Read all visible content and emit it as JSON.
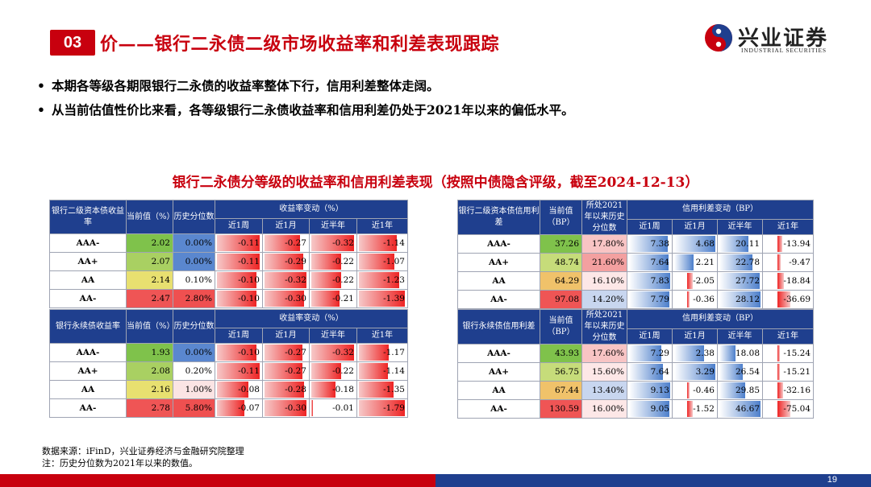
{
  "header": {
    "section_number": "03",
    "title": "价——银行二永债二级市场收益率和利差表现跟踪",
    "logo_cn": "兴业证券",
    "logo_en": "INDUSTRIAL SECURITIES"
  },
  "bullets": [
    "本期各等级各期限银行二永债的收益率整体下行，信用利差整体走阔。",
    "从当前估值性价比来看，各等级银行二永债收益率和信用利差仍处于2021年以来的偏低水平。"
  ],
  "table_title": "银行二永债分等级的收益率和信用利差表现（按照中债隐含评级，截至2024-12-13）",
  "colors": {
    "accent_red": "#c8000e",
    "header_blue": "#1f3f8e"
  },
  "yield_tables": [
    {
      "headers": {
        "c1": "银行二级资本债收益率",
        "c2": "当前值（%）",
        "c3": "历史分位数",
        "group": "收益率变动（%）",
        "sub": [
          "近1周",
          "近1月",
          "近半年",
          "近1年"
        ]
      },
      "rows": [
        {
          "grade": "AAA-",
          "current": "2.02",
          "pct": "0.00%",
          "w1": "-0.11",
          "m1": "-0.27",
          "h1": "-0.32",
          "y1": "-1.14"
        },
        {
          "grade": "AA+",
          "current": "2.07",
          "pct": "0.00%",
          "w1": "-0.11",
          "m1": "-0.29",
          "h1": "-0.22",
          "y1": "-1.07"
        },
        {
          "grade": "AA",
          "current": "2.14",
          "pct": "0.10%",
          "w1": "-0.10",
          "m1": "-0.32",
          "h1": "-0.22",
          "y1": "-1.23"
        },
        {
          "grade": "AA-",
          "current": "2.47",
          "pct": "2.80%",
          "w1": "-0.10",
          "m1": "-0.30",
          "h1": "-0.21",
          "y1": "-1.39"
        }
      ]
    },
    {
      "headers": {
        "c1": "银行永续债收益率",
        "c2": "当前值（%）",
        "c3": "历史分位数",
        "group": "收益率变动（%）",
        "sub": [
          "近1周",
          "近1月",
          "近半年",
          "近1年"
        ]
      },
      "rows": [
        {
          "grade": "AAA-",
          "current": "1.93",
          "pct": "0.00%",
          "w1": "-0.10",
          "m1": "-0.27",
          "h1": "-0.32",
          "y1": "-1.17"
        },
        {
          "grade": "AA+",
          "current": "2.08",
          "pct": "0.20%",
          "w1": "-0.11",
          "m1": "-0.27",
          "h1": "-0.22",
          "y1": "-1.14"
        },
        {
          "grade": "AA",
          "current": "2.16",
          "pct": "1.00%",
          "w1": "-0.08",
          "m1": "-0.28",
          "h1": "-0.18",
          "y1": "-1.35"
        },
        {
          "grade": "AA-",
          "current": "2.78",
          "pct": "5.80%",
          "w1": "-0.07",
          "m1": "-0.30",
          "h1": "-0.01",
          "y1": "-1.79"
        }
      ]
    }
  ],
  "spread_tables": [
    {
      "headers": {
        "c1": "银行二级资本债信用利差",
        "c2": "当前值（BP）",
        "c3": "所处2021年以来历史分位数",
        "group": "信用利差变动（BP）",
        "sub": [
          "近1周",
          "近1月",
          "近半年",
          "近1年"
        ]
      },
      "rows": [
        {
          "grade": "AAA-",
          "current": "37.26",
          "pct": "17.80%",
          "w1": "7.38",
          "m1": "4.68",
          "h1": "20.11",
          "y1": "-13.94"
        },
        {
          "grade": "AA+",
          "current": "48.74",
          "pct": "21.60%",
          "w1": "7.64",
          "m1": "2.21",
          "h1": "22.78",
          "y1": "-9.47"
        },
        {
          "grade": "AA",
          "current": "64.29",
          "pct": "16.10%",
          "w1": "7.83",
          "m1": "-2.05",
          "h1": "27.72",
          "y1": "-18.84"
        },
        {
          "grade": "AA-",
          "current": "97.08",
          "pct": "14.20%",
          "w1": "7.79",
          "m1": "-0.36",
          "h1": "28.12",
          "y1": "-36.69"
        }
      ]
    },
    {
      "headers": {
        "c1": "银行永续债信用利差",
        "c2": "当前值（BP）",
        "c3": "所处2021年以来历史分位数",
        "group": "信用利差变动（BP）",
        "sub": [
          "近1周",
          "近1月",
          "近半年",
          "近1年"
        ]
      },
      "rows": [
        {
          "grade": "AAA-",
          "current": "43.93",
          "pct": "17.60%",
          "w1": "7.29",
          "m1": "2.38",
          "h1": "18.08",
          "y1": "-15.24"
        },
        {
          "grade": "AA+",
          "current": "56.75",
          "pct": "15.60%",
          "w1": "7.64",
          "m1": "3.29",
          "h1": "26.54",
          "y1": "-15.21"
        },
        {
          "grade": "AA",
          "current": "67.44",
          "pct": "13.40%",
          "w1": "9.13",
          "m1": "-0.46",
          "h1": "29.85",
          "y1": "-32.16"
        },
        {
          "grade": "AA-",
          "current": "130.59",
          "pct": "16.00%",
          "w1": "9.05",
          "m1": "-1.52",
          "h1": "46.67",
          "y1": "-75.04"
        }
      ]
    }
  ],
  "footer": {
    "source": "数据来源：iFinD，兴业证券经济与金融研究院整理",
    "note": "注：历史分位数为2021年以来的数值。",
    "page_number": "19"
  }
}
